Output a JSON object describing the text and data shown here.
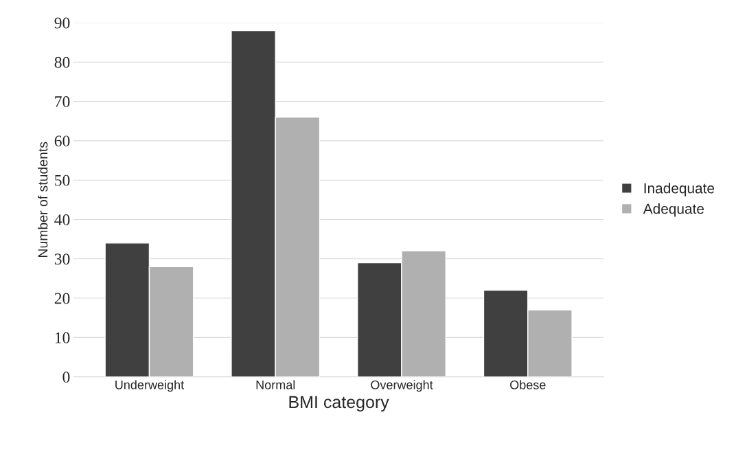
{
  "chart_data": {
    "type": "bar",
    "xlabel": "BMI category",
    "ylabel": "Number of students",
    "categories": [
      "Underweight",
      "Normal",
      "Overweight",
      "Obese"
    ],
    "series": [
      {
        "name": "Inadequate",
        "color": "#404040",
        "values": [
          34,
          88,
          29,
          22
        ]
      },
      {
        "name": "Adequate",
        "color": "#b0b0b0",
        "values": [
          28,
          66,
          32,
          17
        ]
      }
    ],
    "ylim": [
      0,
      90
    ],
    "yticks": [
      0,
      10,
      20,
      30,
      40,
      50,
      60,
      70,
      80,
      90
    ],
    "grid": "y",
    "legend": "right"
  }
}
